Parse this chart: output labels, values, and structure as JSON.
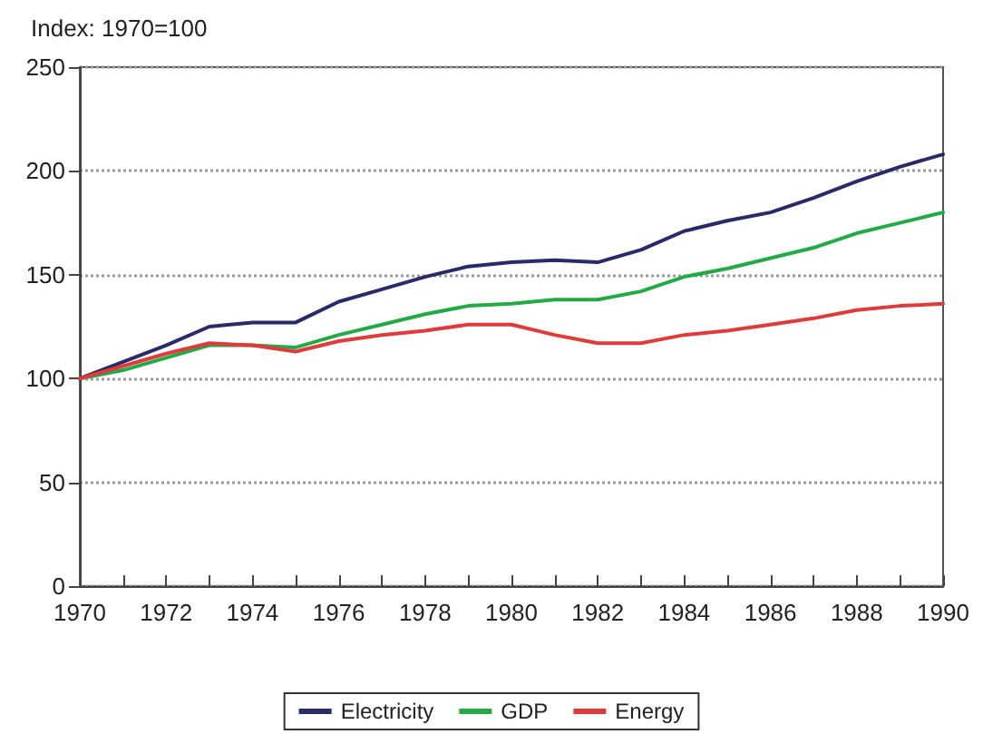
{
  "chart_data": {
    "type": "line",
    "ylabel": "Index: 1970=100",
    "x": [
      1970,
      1971,
      1972,
      1973,
      1974,
      1975,
      1976,
      1977,
      1978,
      1979,
      1980,
      1981,
      1982,
      1983,
      1984,
      1985,
      1986,
      1987,
      1988,
      1989,
      1990
    ],
    "series": [
      {
        "name": "Electricity",
        "color": "#2a2a6a",
        "values": [
          100,
          108,
          116,
          125,
          127,
          127,
          137,
          143,
          149,
          154,
          156,
          157,
          156,
          162,
          171,
          176,
          180,
          187,
          195,
          202,
          208
        ]
      },
      {
        "name": "GDP",
        "color": "#22aa44",
        "values": [
          100,
          104,
          110,
          116,
          116,
          115,
          121,
          126,
          131,
          135,
          136,
          138,
          138,
          142,
          149,
          153,
          158,
          163,
          170,
          175,
          180
        ]
      },
      {
        "name": "Energy",
        "color": "#e03a3a",
        "values": [
          100,
          106,
          112,
          117,
          116,
          113,
          118,
          121,
          123,
          126,
          126,
          121,
          117,
          117,
          121,
          123,
          126,
          129,
          133,
          135,
          136
        ]
      }
    ],
    "xlim": [
      1970,
      1990
    ],
    "xticks": [
      1970,
      {
        "value": 1971,
        "label": null
      },
      1972,
      {
        "value": 1973,
        "label": null
      },
      1974,
      {
        "value": 1975,
        "label": null
      },
      1976,
      {
        "value": 1977,
        "label": null
      },
      1978,
      {
        "value": 1979,
        "label": null
      },
      1980,
      {
        "value": 1981,
        "label": null
      },
      1982,
      {
        "value": 1983,
        "label": null
      },
      1984,
      {
        "value": 1985,
        "label": null
      },
      1986,
      {
        "value": 1987,
        "label": null
      },
      1988,
      {
        "value": 1989,
        "label": null
      },
      1990
    ],
    "ylim": [
      0,
      250
    ],
    "yticks": [
      0,
      50,
      100,
      150,
      200,
      250
    ],
    "grid": "y",
    "legend": "bottom",
    "marker": "none",
    "line_style": "solid"
  }
}
